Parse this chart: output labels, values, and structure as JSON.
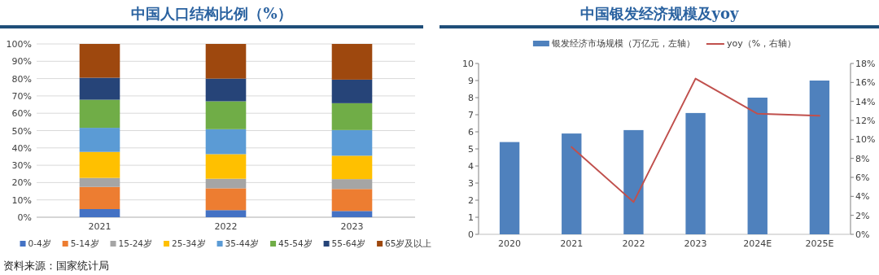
{
  "chart_data": [
    {
      "type": "bar",
      "title": "中国人口结构比例（%）",
      "categories": [
        "2021",
        "2022",
        "2023"
      ],
      "stacked": true,
      "grid": "y",
      "legend": "bottom",
      "ylim": [
        0,
        100
      ],
      "yticks": [
        {
          "value": 0,
          "label": "0%"
        },
        {
          "value": 10,
          "label": "10%"
        },
        {
          "value": 20,
          "label": "20%"
        },
        {
          "value": 30,
          "label": "30%"
        },
        {
          "value": 40,
          "label": "40%"
        },
        {
          "value": 50,
          "label": "50%"
        },
        {
          "value": 60,
          "label": "60%"
        },
        {
          "value": 70,
          "label": "70%"
        },
        {
          "value": 80,
          "label": "80%"
        },
        {
          "value": 90,
          "label": "90%"
        },
        {
          "value": 100,
          "label": "100%"
        }
      ],
      "series": [
        {
          "name": "0-4岁",
          "color": "#4472c4",
          "values": [
            4.7,
            4.1,
            3.6
          ]
        },
        {
          "name": "5-14岁",
          "color": "#ed7d31",
          "values": [
            12.8,
            12.6,
            12.7
          ]
        },
        {
          "name": "15-24岁",
          "color": "#a5a5a5",
          "values": [
            5.2,
            5.5,
            5.7
          ]
        },
        {
          "name": "25-34岁",
          "color": "#ffc000",
          "values": [
            15.0,
            14.2,
            13.5
          ]
        },
        {
          "name": "35-44岁",
          "color": "#5b9bd5",
          "values": [
            13.9,
            14.4,
            14.8
          ]
        },
        {
          "name": "45-54岁",
          "color": "#70ad47",
          "values": [
            16.2,
            16.1,
            15.5
          ]
        },
        {
          "name": "55-64岁",
          "color": "#264478",
          "values": [
            12.7,
            13.1,
            13.6
          ]
        },
        {
          "name": "65岁及以上",
          "color": "#9e480e",
          "values": [
            19.5,
            20.0,
            20.6
          ]
        }
      ],
      "annotations": [
        "资料来源：国家统计局"
      ]
    },
    {
      "type": "bar",
      "title": "中国银发经济规模及yoy",
      "categories": [
        "2020",
        "2021",
        "2022",
        "2023",
        "2024E",
        "2025E"
      ],
      "legend": "top",
      "ylim": [
        0,
        10
      ],
      "yticks": [
        0,
        1,
        2,
        3,
        4,
        5,
        6,
        7,
        8,
        9,
        10
      ],
      "y2lim": [
        0,
        18
      ],
      "y2ticks": [
        {
          "value": 0,
          "label": "0%"
        },
        {
          "value": 2,
          "label": "2%"
        },
        {
          "value": 4,
          "label": "4%"
        },
        {
          "value": 6,
          "label": "6%"
        },
        {
          "value": 8,
          "label": "8%"
        },
        {
          "value": 10,
          "label": "10%"
        },
        {
          "value": 12,
          "label": "12%"
        },
        {
          "value": 14,
          "label": "14%"
        },
        {
          "value": 16,
          "label": "16%"
        },
        {
          "value": 18,
          "label": "18%"
        }
      ],
      "series": [
        {
          "name": "银发经济市场规模（万亿元，左轴）",
          "color": "#4f81bd",
          "values": [
            5.4,
            5.9,
            6.1,
            7.1,
            8.0,
            9.0
          ]
        },
        {
          "name": "yoy（%，右轴）",
          "type": "line",
          "axis": "y2",
          "color": "#c0504d",
          "values": [
            null,
            9.2,
            3.4,
            16.4,
            12.7,
            12.5
          ]
        }
      ]
    }
  ]
}
